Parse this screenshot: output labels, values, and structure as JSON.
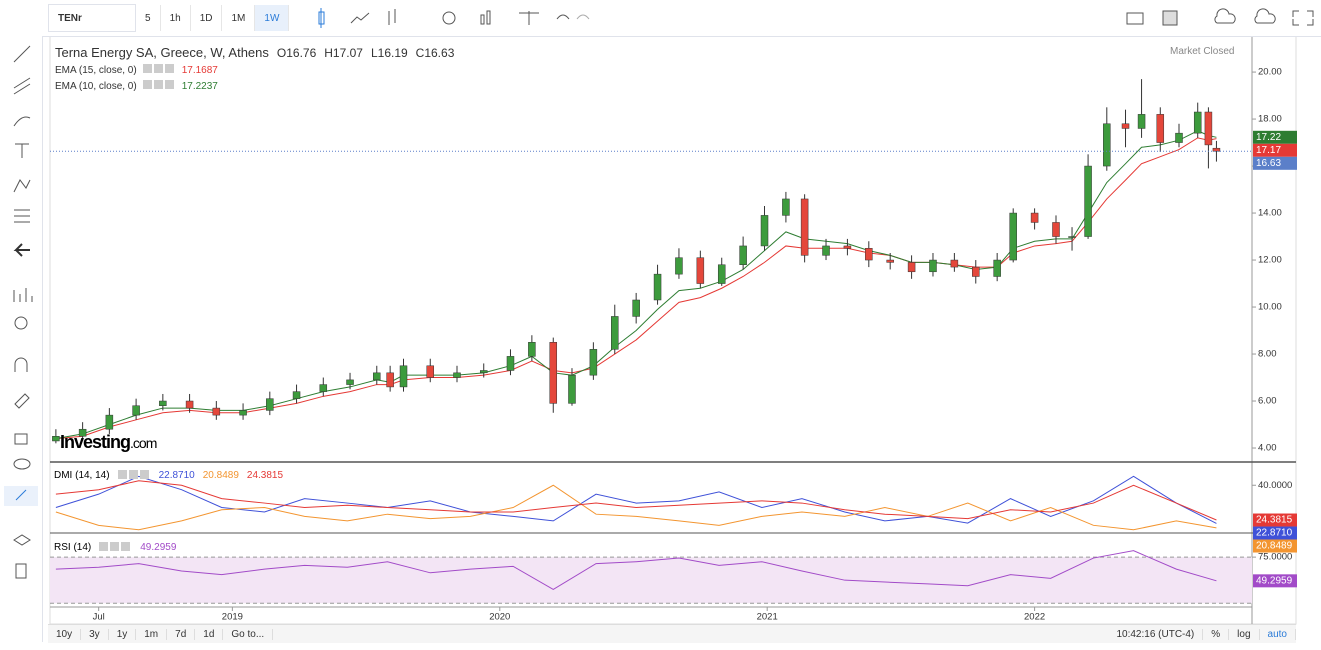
{
  "toolbar": {
    "symbol": "TENr",
    "intervals": [
      "5",
      "1h",
      "1D",
      "1M",
      "1W"
    ]
  },
  "legend": {
    "title": "Terna Energy SA, Greece, W, Athens",
    "ohlc": [
      "O16.76",
      "H17.07",
      "L16.19",
      "C16.63"
    ],
    "status": "Market Closed"
  },
  "watermark": {
    "brand": "Investing",
    "suffix": ".com"
  },
  "chart_data": [
    {
      "type": "candlestick",
      "x": [
        2018.34,
        2018.44,
        2018.54,
        2018.64,
        2018.74,
        2018.84,
        2018.94,
        2019.04,
        2019.14,
        2019.24,
        2019.34,
        2019.44,
        2019.54,
        2019.59,
        2019.64,
        2019.74,
        2019.84,
        2019.94,
        2020.04,
        2020.12,
        2020.2,
        2020.27,
        2020.35,
        2020.43,
        2020.51,
        2020.59,
        2020.67,
        2020.75,
        2020.83,
        2020.91,
        2020.99,
        2021.07,
        2021.14,
        2021.22,
        2021.3,
        2021.38,
        2021.46,
        2021.54,
        2021.62,
        2021.7,
        2021.78,
        2021.86,
        2021.92,
        2022.0,
        2022.08,
        2022.14,
        2022.2,
        2022.27,
        2022.34,
        2022.4,
        2022.47,
        2022.54,
        2022.61,
        2022.65,
        2022.68
      ],
      "open": [
        4.3,
        4.5,
        4.8,
        5.4,
        5.8,
        6.0,
        5.7,
        5.4,
        5.6,
        6.1,
        6.4,
        6.7,
        6.9,
        7.2,
        6.6,
        7.5,
        7.0,
        7.2,
        7.3,
        7.9,
        8.5,
        5.9,
        7.1,
        8.2,
        9.6,
        10.3,
        11.4,
        12.1,
        11.0,
        11.8,
        12.6,
        13.9,
        14.6,
        12.2,
        12.6,
        12.5,
        12.0,
        11.9,
        11.5,
        12.0,
        11.7,
        11.3,
        12.0,
        14.0,
        13.6,
        13.0,
        13.0,
        16.0,
        17.8,
        17.6,
        18.2,
        17.0,
        17.4,
        18.3,
        16.76
      ],
      "high": [
        4.8,
        5.1,
        5.7,
        6.1,
        6.3,
        6.3,
        6.0,
        5.9,
        6.4,
        6.7,
        7.0,
        7.2,
        7.5,
        7.5,
        7.8,
        7.8,
        7.5,
        7.6,
        8.2,
        8.8,
        8.7,
        7.4,
        8.5,
        10.1,
        10.6,
        11.8,
        12.5,
        12.4,
        12.1,
        13.0,
        14.3,
        14.9,
        14.8,
        12.9,
        12.9,
        12.8,
        12.3,
        12.2,
        12.3,
        12.3,
        12.0,
        12.3,
        14.2,
        14.2,
        13.9,
        13.4,
        16.5,
        18.5,
        18.4,
        19.7,
        18.5,
        17.8,
        18.7,
        18.5,
        17.07
      ],
      "low": [
        4.2,
        4.3,
        4.6,
        5.2,
        5.6,
        5.5,
        5.2,
        5.2,
        5.4,
        5.9,
        6.2,
        6.5,
        6.7,
        6.4,
        6.4,
        6.8,
        6.8,
        7.0,
        7.1,
        7.7,
        5.5,
        5.8,
        6.9,
        8.0,
        9.3,
        10.1,
        11.2,
        10.8,
        10.9,
        11.6,
        12.4,
        13.6,
        11.9,
        12.0,
        12.2,
        11.7,
        11.6,
        11.2,
        11.3,
        11.5,
        11.0,
        11.1,
        11.9,
        13.3,
        12.7,
        12.4,
        12.9,
        15.8,
        16.8,
        17.2,
        16.6,
        16.8,
        17.2,
        15.9,
        16.19
      ],
      "close": [
        4.5,
        4.8,
        5.4,
        5.8,
        6.0,
        5.7,
        5.4,
        5.6,
        6.1,
        6.4,
        6.7,
        6.9,
        7.2,
        6.6,
        7.5,
        7.0,
        7.2,
        7.3,
        7.9,
        8.5,
        5.9,
        7.1,
        8.2,
        9.6,
        10.3,
        11.4,
        12.1,
        11.0,
        11.8,
        12.6,
        13.9,
        14.6,
        12.2,
        12.6,
        12.5,
        12.0,
        11.9,
        11.5,
        12.0,
        11.7,
        11.3,
        12.0,
        14.0,
        13.6,
        13.0,
        13.0,
        16.0,
        17.8,
        17.6,
        18.2,
        17.0,
        17.4,
        18.3,
        16.9,
        16.63
      ],
      "last_label": "16.63",
      "series": [
        {
          "name": "EMA (15, close, 0)",
          "color": "#e53935",
          "last_label": "17.17",
          "values": [
            4.4,
            4.5,
            4.9,
            5.2,
            5.5,
            5.6,
            5.5,
            5.5,
            5.7,
            5.9,
            6.2,
            6.4,
            6.7,
            6.7,
            6.9,
            7.0,
            7.0,
            7.1,
            7.3,
            7.7,
            7.3,
            7.2,
            7.4,
            8.0,
            8.6,
            9.4,
            10.2,
            10.4,
            10.8,
            11.3,
            11.9,
            12.6,
            12.5,
            12.5,
            12.5,
            12.3,
            12.2,
            11.9,
            11.9,
            11.8,
            11.7,
            11.7,
            12.3,
            12.6,
            12.7,
            12.8,
            13.6,
            14.6,
            15.4,
            16.1,
            16.4,
            16.7,
            17.2,
            17.1,
            17.1687
          ]
        },
        {
          "name": "EMA (10, close, 0)",
          "color": "#2e7d32",
          "last_label": "17.22",
          "values": [
            4.4,
            4.6,
            5.0,
            5.4,
            5.7,
            5.7,
            5.6,
            5.6,
            5.8,
            6.1,
            6.4,
            6.6,
            6.9,
            6.8,
            7.1,
            7.1,
            7.1,
            7.2,
            7.5,
            7.9,
            7.2,
            7.1,
            7.5,
            8.3,
            9.0,
            9.9,
            10.7,
            10.8,
            11.1,
            11.6,
            12.4,
            13.2,
            12.9,
            12.8,
            12.7,
            12.4,
            12.2,
            11.9,
            11.9,
            11.8,
            11.6,
            11.7,
            12.5,
            12.8,
            12.9,
            12.9,
            14.0,
            15.3,
            16.1,
            16.8,
            16.9,
            17.1,
            17.5,
            17.3,
            17.2237
          ]
        }
      ],
      "up_color": "#3d9b3d",
      "down_color": "#e4473b",
      "price_line_color": "#5b7fc9",
      "xlim": [
        2018.318,
        2022.813
      ],
      "ylim": [
        3.49,
        21.45
      ],
      "yticks": [
        {
          "value": 4,
          "label": "4.00"
        },
        {
          "value": 6,
          "label": "6.00"
        },
        {
          "value": 8,
          "label": "8.00"
        },
        {
          "value": 10,
          "label": "10.00"
        },
        {
          "value": 12,
          "label": "12.00"
        },
        {
          "value": 14,
          "label": "14.00"
        },
        {
          "value": 16,
          "label": "16.00"
        },
        {
          "value": 18,
          "label": "18.00"
        },
        {
          "value": 20,
          "label": "20.00"
        }
      ],
      "xticks": [
        {
          "value": 2018.5,
          "label": "Jul"
        },
        2019,
        2020,
        2021,
        2022
      ]
    },
    {
      "type": "line",
      "title": "DMI (14, 14)",
      "x": [
        2018.34,
        2018.5,
        2018.65,
        2018.81,
        2018.96,
        2019.12,
        2019.27,
        2019.43,
        2019.58,
        2019.74,
        2019.89,
        2020.05,
        2020.2,
        2020.36,
        2020.51,
        2020.67,
        2020.82,
        2020.98,
        2021.13,
        2021.29,
        2021.44,
        2021.6,
        2021.75,
        2021.91,
        2022.06,
        2022.22,
        2022.37,
        2022.53,
        2022.68
      ],
      "series": [
        {
          "color": "#3f51d8",
          "value_label": "22.8710",
          "values": [
            30,
            36,
            44,
            38,
            30,
            28,
            34,
            32,
            30,
            33,
            28,
            26,
            24,
            36,
            32,
            33,
            37,
            30,
            34,
            28,
            24,
            26,
            23,
            34,
            26,
            33,
            44,
            32,
            22.871
          ]
        },
        {
          "color": "#f39530",
          "value_label": "20.8489",
          "values": [
            28,
            22,
            20,
            24,
            29,
            30,
            26,
            24,
            27,
            25,
            26,
            30,
            40,
            27,
            26,
            24,
            22,
            26,
            28,
            26,
            30,
            26,
            32,
            24,
            30,
            22,
            20,
            24,
            20.8489
          ]
        },
        {
          "color": "#e53935",
          "value_label": "24.3815",
          "values": [
            36,
            38,
            42,
            40,
            34,
            32,
            30,
            31,
            30,
            29,
            28,
            28,
            30,
            32,
            30,
            31,
            32,
            33,
            32,
            29,
            27,
            26,
            25,
            29,
            28,
            32,
            40,
            32,
            24.3815
          ]
        }
      ],
      "xlim": [
        2018.318,
        2022.813
      ],
      "ylim": [
        19,
        50
      ],
      "yticks": [
        {
          "value": 40,
          "label": "40.0000"
        }
      ]
    },
    {
      "type": "line",
      "title": "RSI (14)",
      "x": [
        2018.34,
        2018.5,
        2018.65,
        2018.81,
        2018.96,
        2019.12,
        2019.27,
        2019.43,
        2019.58,
        2019.74,
        2019.89,
        2020.05,
        2020.2,
        2020.36,
        2020.51,
        2020.67,
        2020.82,
        2020.98,
        2021.13,
        2021.29,
        2021.44,
        2021.6,
        2021.75,
        2021.91,
        2022.06,
        2022.22,
        2022.37,
        2022.53,
        2022.68
      ],
      "series": [
        {
          "color": "#a24bc8",
          "value_label": "49.2959",
          "values": [
            62,
            64,
            68,
            60,
            56,
            62,
            66,
            64,
            70,
            58,
            62,
            65,
            40,
            68,
            70,
            74,
            66,
            70,
            60,
            50,
            48,
            46,
            44,
            56,
            52,
            74,
            82,
            62,
            49.2959
          ]
        }
      ],
      "levels": [
        25,
        75
      ],
      "band_color": "#f3e5f5",
      "xlim": [
        2018.318,
        2022.813
      ],
      "ylim": [
        22,
        99
      ],
      "yticks": [
        {
          "value": 75,
          "label": "75.0000"
        }
      ]
    }
  ],
  "bottom_bar": {
    "ranges": [
      "10y",
      "3y",
      "1y",
      "1m",
      "7d",
      "1d"
    ],
    "goto": "Go to...",
    "time": "10:42:16 (UTC-4)",
    "options": [
      "%",
      "log",
      "auto"
    ]
  }
}
